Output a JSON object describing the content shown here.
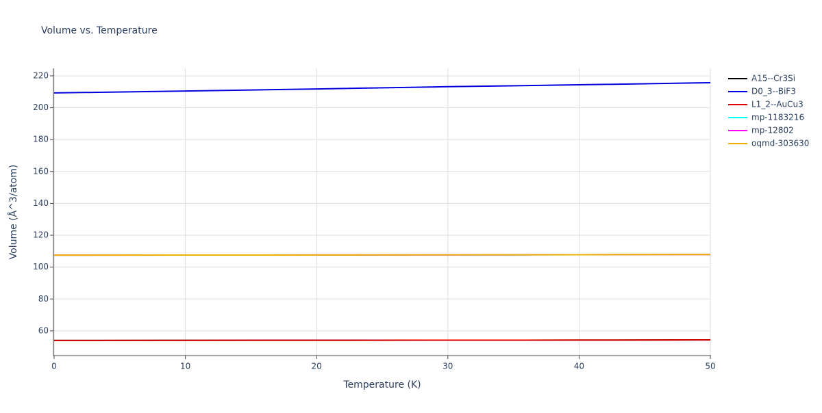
{
  "chart_data": {
    "type": "line",
    "title": "Volume vs. Temperature",
    "x_label": "Temperature (K)",
    "y_label": "Volume (Å^3/atom)",
    "x": [
      0,
      10,
      20,
      30,
      40,
      50
    ],
    "series": [
      {
        "name": "A15--Cr3Si",
        "color": "#000000",
        "values": [
          54.0,
          54.05,
          54.1,
          54.15,
          54.2,
          54.3
        ]
      },
      {
        "name": "D0_3--BiF3",
        "color": "#0000dd",
        "values": [
          209.3,
          210.5,
          211.8,
          213.2,
          214.4,
          215.7
        ]
      },
      {
        "name": "L1_2--AuCu3",
        "color": "#dd0000",
        "values": [
          54.0,
          54.05,
          54.1,
          54.15,
          54.2,
          54.3
        ]
      },
      {
        "name": "mp-1183216",
        "color": "#00ffff",
        "values": [
          107.5,
          107.55,
          107.6,
          107.7,
          107.8,
          107.9
        ]
      },
      {
        "name": "mp-12802",
        "color": "#ff00ff",
        "values": [
          107.5,
          107.55,
          107.6,
          107.7,
          107.8,
          107.9
        ]
      },
      {
        "name": "oqmd-303630",
        "color": "#f0b000",
        "values": [
          107.5,
          107.55,
          107.6,
          107.7,
          107.8,
          107.9
        ]
      }
    ],
    "xlim": [
      0,
      50
    ],
    "xticks": [
      0,
      10,
      20,
      30,
      40,
      50
    ],
    "ylim": [
      44.5,
      224.7
    ],
    "yticks": [
      60,
      80,
      100,
      120,
      140,
      160,
      180,
      200,
      220
    ],
    "grid": true,
    "legend": "right"
  }
}
